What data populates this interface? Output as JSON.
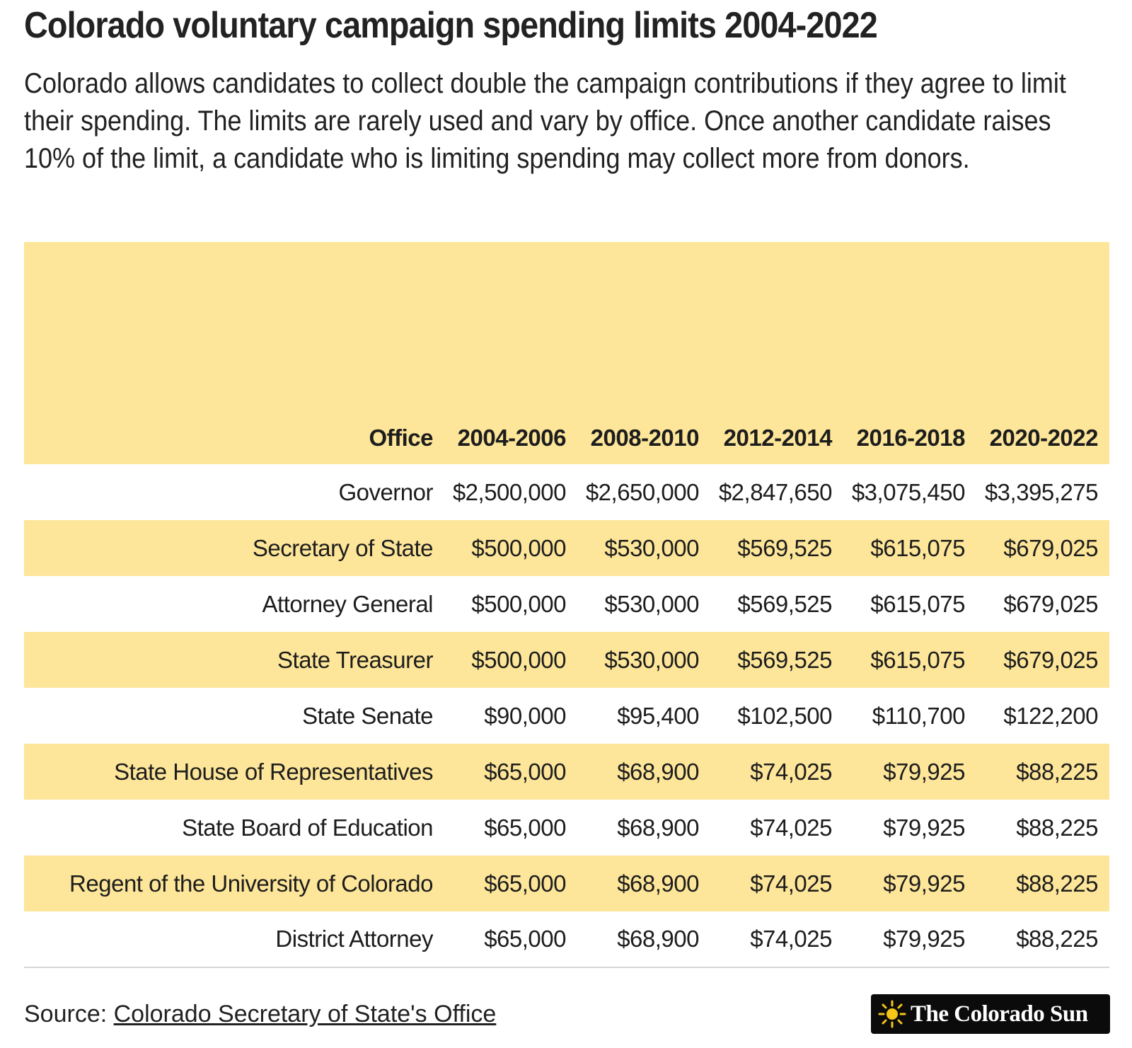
{
  "title": "Colorado voluntary campaign spending limits 2004-2022",
  "subtitle": "Colorado allows candidates to collect double the campaign contributions if they agree to limit their spending. The limits are rarely used and vary by office. Once another candidate raises 10% of the limit, a candidate who is limiting spending may collect more from donors.",
  "chart_data": {
    "type": "table",
    "columns": [
      "Office",
      "2004-2006",
      "2008-2010",
      "2012-2014",
      "2016-2018",
      "2020-2022"
    ],
    "rows": [
      [
        "Governor",
        "$2,500,000",
        "$2,650,000",
        "$2,847,650",
        "$3,075,450",
        "$3,395,275"
      ],
      [
        "Secretary of State",
        "$500,000",
        "$530,000",
        "$569,525",
        "$615,075",
        "$679,025"
      ],
      [
        "Attorney General",
        "$500,000",
        "$530,000",
        "$569,525",
        "$615,075",
        "$679,025"
      ],
      [
        "State Treasurer",
        "$500,000",
        "$530,000",
        "$569,525",
        "$615,075",
        "$679,025"
      ],
      [
        "State Senate",
        "$90,000",
        "$95,400",
        "$102,500",
        "$110,700",
        "$122,200"
      ],
      [
        "State House of Representatives",
        "$65,000",
        "$68,900",
        "$74,025",
        "$79,925",
        "$88,225"
      ],
      [
        "State Board of Education",
        "$65,000",
        "$68,900",
        "$74,025",
        "$79,925",
        "$88,225"
      ],
      [
        "Regent of the University of Colorado",
        "$65,000",
        "$68,900",
        "$74,025",
        "$79,925",
        "$88,225"
      ],
      [
        "District Attorney",
        "$65,000",
        "$68,900",
        "$74,025",
        "$79,925",
        "$88,225"
      ]
    ]
  },
  "source": {
    "prefix": "Source: ",
    "link_text": "Colorado Secretary of State's Office"
  },
  "logo": {
    "text": "The Colorado Sun",
    "icon": "sun-icon"
  },
  "colors": {
    "band": "#fde699",
    "text": "#1d1d1d",
    "logo_bg": "#0b0b0b",
    "sun": "#f5c518"
  }
}
